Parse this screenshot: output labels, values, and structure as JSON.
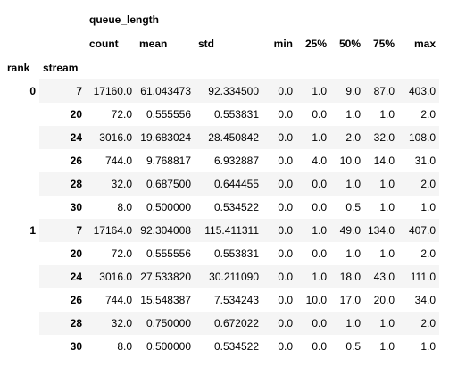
{
  "table": {
    "group_header": "queue_length",
    "columns": [
      "count",
      "mean",
      "std",
      "min",
      "25%",
      "50%",
      "75%",
      "max"
    ],
    "index_names": [
      "rank",
      "stream"
    ],
    "groups": [
      {
        "rank": "0",
        "rows": [
          {
            "stream": "7",
            "cells": [
              "17160.0",
              "61.043473",
              "92.334500",
              "0.0",
              "1.0",
              "9.0",
              "87.0",
              "403.0"
            ]
          },
          {
            "stream": "20",
            "cells": [
              "72.0",
              "0.555556",
              "0.553831",
              "0.0",
              "0.0",
              "1.0",
              "1.0",
              "2.0"
            ]
          },
          {
            "stream": "24",
            "cells": [
              "3016.0",
              "19.683024",
              "28.450842",
              "0.0",
              "1.0",
              "2.0",
              "32.0",
              "108.0"
            ]
          },
          {
            "stream": "26",
            "cells": [
              "744.0",
              "9.768817",
              "6.932887",
              "0.0",
              "4.0",
              "10.0",
              "14.0",
              "31.0"
            ]
          },
          {
            "stream": "28",
            "cells": [
              "32.0",
              "0.687500",
              "0.644455",
              "0.0",
              "0.0",
              "1.0",
              "1.0",
              "2.0"
            ]
          },
          {
            "stream": "30",
            "cells": [
              "8.0",
              "0.500000",
              "0.534522",
              "0.0",
              "0.0",
              "0.5",
              "1.0",
              "1.0"
            ]
          }
        ]
      },
      {
        "rank": "1",
        "rows": [
          {
            "stream": "7",
            "cells": [
              "17164.0",
              "92.304008",
              "115.411311",
              "0.0",
              "1.0",
              "49.0",
              "134.0",
              "407.0"
            ]
          },
          {
            "stream": "20",
            "cells": [
              "72.0",
              "0.555556",
              "0.553831",
              "0.0",
              "0.0",
              "1.0",
              "1.0",
              "2.0"
            ]
          },
          {
            "stream": "24",
            "cells": [
              "3016.0",
              "27.533820",
              "30.211090",
              "0.0",
              "1.0",
              "18.0",
              "43.0",
              "111.0"
            ]
          },
          {
            "stream": "26",
            "cells": [
              "744.0",
              "15.548387",
              "7.534243",
              "0.0",
              "10.0",
              "17.0",
              "20.0",
              "34.0"
            ]
          },
          {
            "stream": "28",
            "cells": [
              "32.0",
              "0.750000",
              "0.672022",
              "0.0",
              "0.0",
              "1.0",
              "1.0",
              "2.0"
            ]
          },
          {
            "stream": "30",
            "cells": [
              "8.0",
              "0.500000",
              "0.534522",
              "0.0",
              "0.0",
              "0.5",
              "1.0",
              "1.0"
            ]
          }
        ]
      }
    ]
  },
  "colors": {
    "stripe": "#f5f5f5",
    "text": "#000000"
  }
}
